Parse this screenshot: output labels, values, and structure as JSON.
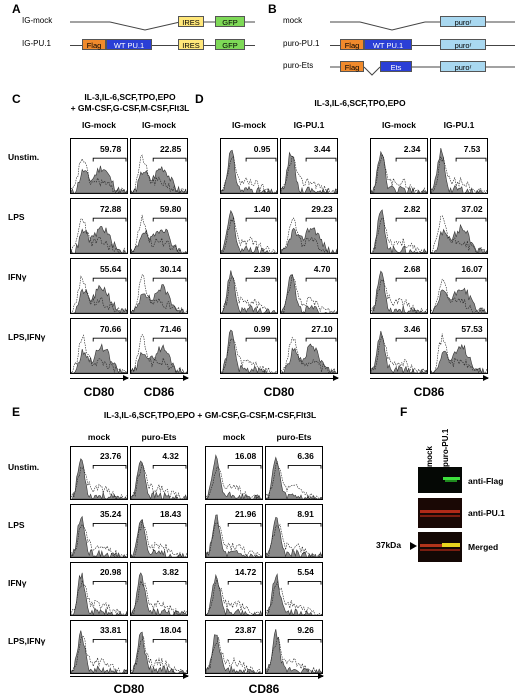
{
  "panel_labels": {
    "A": "A",
    "B": "B",
    "C": "C",
    "D": "D",
    "E": "E",
    "F": "F"
  },
  "panelA": {
    "constructs": [
      {
        "name": "IG-mock",
        "elements": [
          "IRES",
          "GFP"
        ]
      },
      {
        "name": "IG-PU.1",
        "elements": [
          "Flag",
          "WT PU.1",
          "IRES",
          "GFP"
        ]
      }
    ]
  },
  "panelB": {
    "constructs": [
      {
        "name": "mock",
        "elements": [
          "puroʳ"
        ]
      },
      {
        "name": "puro-PU.1",
        "elements": [
          "Flag",
          "WT PU.1",
          "puroʳ"
        ]
      },
      {
        "name": "puro-Ets",
        "elements": [
          "Flag",
          "Ets",
          "puroʳ"
        ]
      }
    ]
  },
  "panelC": {
    "condition": "IL-3,IL-6,SCF,TPO,EPO\n+ GM-CSF,G-CSF,M-CSF,Flt3L",
    "columns": [
      "IG-mock",
      "IG-mock"
    ],
    "rows": [
      "Unstim.",
      "LPS",
      "IFNγ",
      "LPS,IFNγ"
    ],
    "values": [
      [
        "59.78",
        "22.85"
      ],
      [
        "72.88",
        "59.80"
      ],
      [
        "55.64",
        "30.14"
      ],
      [
        "70.66",
        "71.46"
      ]
    ],
    "x_labels": [
      "CD80",
      "CD86"
    ]
  },
  "panelD": {
    "condition": "IL-3,IL-6,SCF,TPO,EPO",
    "columns": [
      "IG-mock",
      "IG-PU.1",
      "IG-mock",
      "IG-PU.1"
    ],
    "values": [
      [
        "0.95",
        "3.44",
        "2.34",
        "7.53"
      ],
      [
        "1.40",
        "29.23",
        "2.82",
        "37.02"
      ],
      [
        "2.39",
        "4.70",
        "2.68",
        "16.07"
      ],
      [
        "0.99",
        "27.10",
        "3.46",
        "57.53"
      ]
    ],
    "x_labels": [
      "CD80",
      "CD86"
    ]
  },
  "panelE": {
    "condition": "IL-3,IL-6,SCF,TPO,EPO + GM-CSF,G-CSF,M-CSF,Flt3L",
    "columns": [
      "mock",
      "puro-Ets",
      "mock",
      "puro-Ets"
    ],
    "rows": [
      "Unstim.",
      "LPS",
      "IFNγ",
      "LPS,IFNγ"
    ],
    "values": [
      [
        "23.76",
        "4.32",
        "16.08",
        "6.36"
      ],
      [
        "35.24",
        "18.43",
        "21.96",
        "8.91"
      ],
      [
        "20.98",
        "3.82",
        "14.72",
        "5.54"
      ],
      [
        "33.81",
        "18.04",
        "23.87",
        "9.26"
      ]
    ],
    "x_labels": [
      "CD80",
      "CD86"
    ]
  },
  "panelF": {
    "lanes": [
      "mock",
      "puro-PU.1"
    ],
    "blots": [
      "anti-Flag",
      "anti-PU.1",
      "Merged"
    ],
    "marker": "37kDa"
  },
  "colors": {
    "flag": "#f08a2c",
    "pu1": "#2a3fd6",
    "ires": "#ffe77a",
    "gfp": "#7ed957",
    "puro": "#a9d8f0",
    "hist_fill": "#8a8a8a"
  }
}
